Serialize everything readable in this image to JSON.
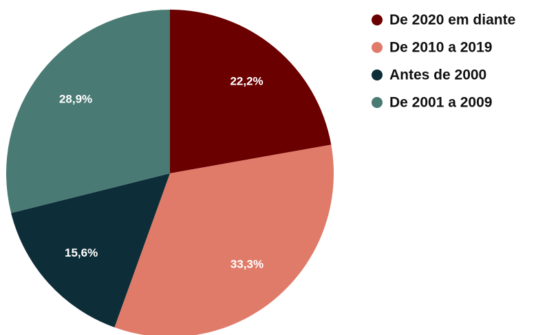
{
  "chart_data": {
    "type": "pie",
    "categories": [
      "De 2020 em diante",
      "De 2010 a 2019",
      "Antes de 2000",
      "De 2001 a 2009"
    ],
    "values": [
      22.2,
      33.3,
      15.6,
      28.9
    ],
    "value_labels": [
      "22,2%",
      "33,3%",
      "15,6%",
      "28,9%"
    ],
    "colors": [
      "#6b0000",
      "#e07b6a",
      "#0d2e38",
      "#4a7a74"
    ],
    "legend": "right"
  }
}
